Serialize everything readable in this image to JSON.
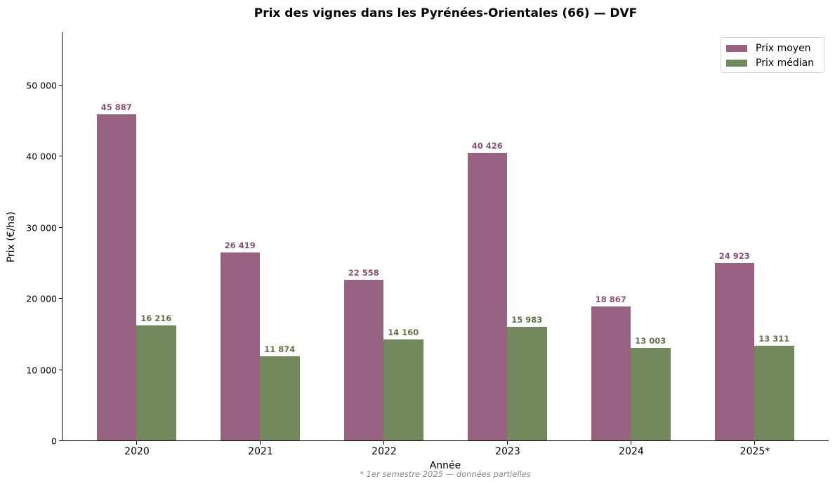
{
  "chart_data": {
    "type": "bar",
    "title": "Prix des vignes dans les Pyrénées-Orientales (66) — DVF",
    "xlabel": "Année",
    "ylabel": "Prix (€/ha)",
    "categories": [
      "2020",
      "2021",
      "2022",
      "2023",
      "2024",
      "2025*"
    ],
    "series": [
      {
        "name": "Prix moyen",
        "color": "#9a6282",
        "label_color": "#8b4f73",
        "values": [
          45887,
          26419,
          22558,
          40426,
          18867,
          24923
        ],
        "labels": [
          "45 887",
          "26 419",
          "22 558",
          "40 426",
          "18 867",
          "24 923"
        ]
      },
      {
        "name": "Prix médian",
        "color": "#72895e",
        "label_color": "#5c7446",
        "values": [
          16216,
          11874,
          14160,
          15983,
          13003,
          13311
        ],
        "labels": [
          "16 216",
          "11 874",
          "14 160",
          "15 983",
          "13 003",
          "13 311"
        ]
      }
    ],
    "yticks": [
      0,
      10000,
      20000,
      30000,
      40000,
      50000
    ],
    "ytick_labels": [
      "0",
      "10 000",
      "20 000",
      "30 000",
      "40 000",
      "50 000"
    ],
    "ylim": [
      0,
      57400
    ],
    "grid": false,
    "legend_position": "upper right",
    "footnote": "* 1er semestre 2025 — données partielles"
  }
}
